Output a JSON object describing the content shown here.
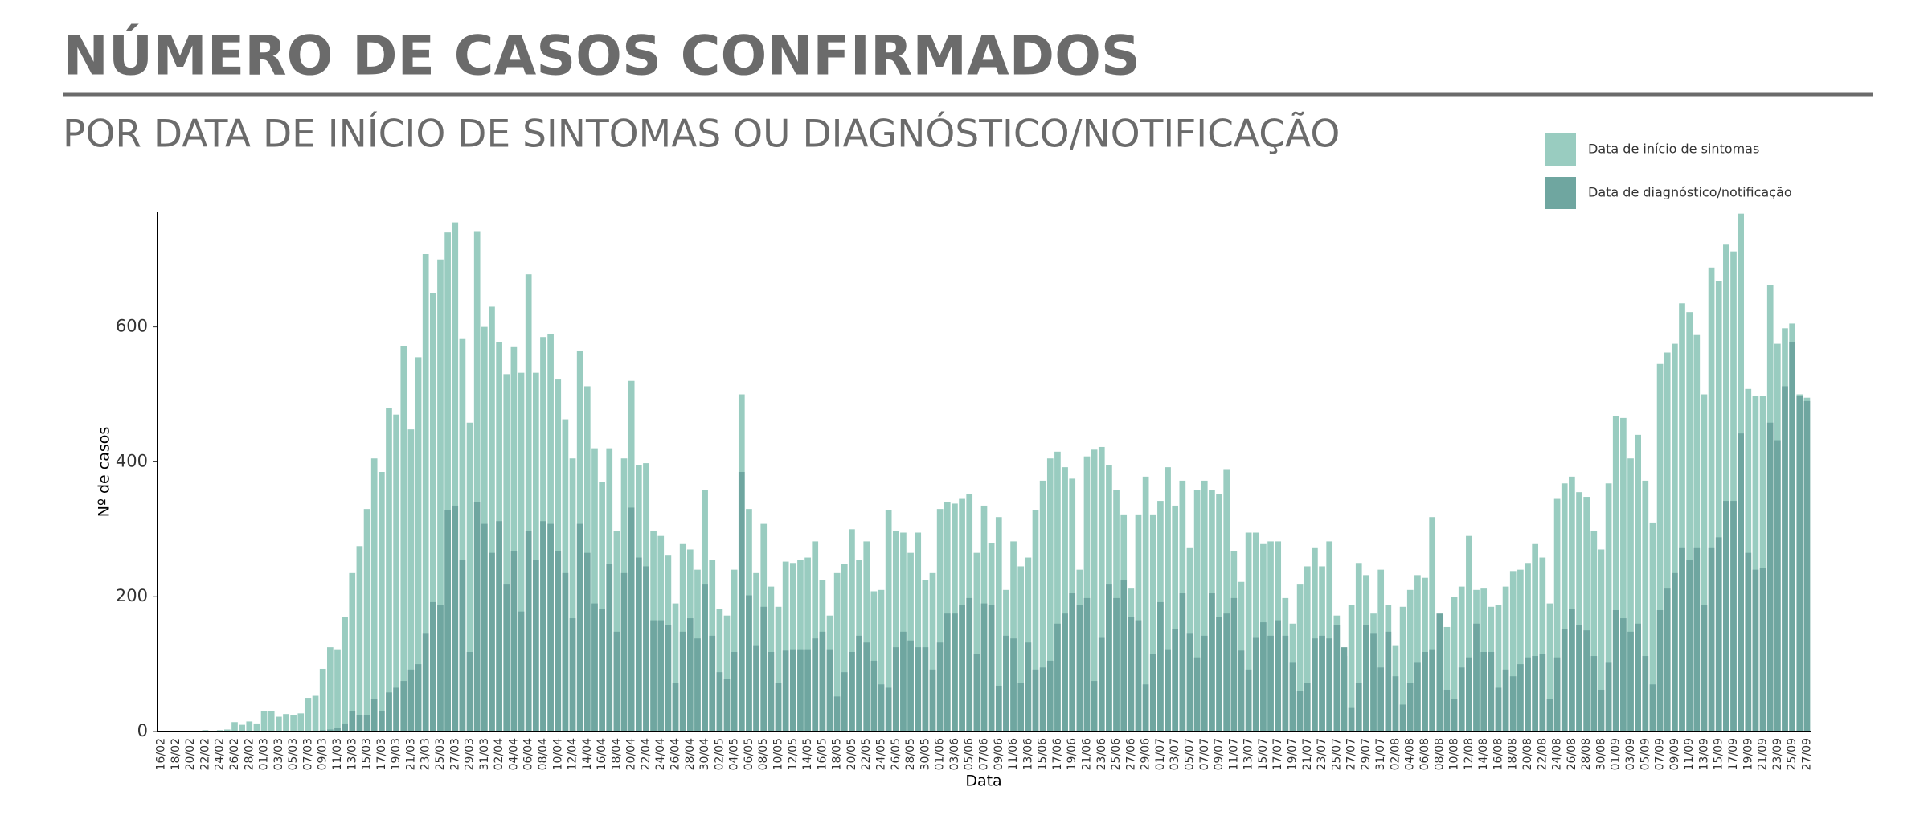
{
  "chart_data": {
    "type": "bar",
    "mode": "overlap",
    "title": "NÚMERO DE CASOS CONFIRMADOS",
    "subtitle": "POR DATA DE INÍCIO DE SINTOMAS OU DIAGNÓSTICO/NOTIFICAÇÃO",
    "x_label": "Data",
    "y_label": "Nº de casos",
    "legend": "top-right",
    "ylim": [
      0,
      770
    ],
    "yticks": [
      0,
      200,
      400,
      600
    ],
    "grid": false,
    "categories": [
      "16/02",
      null,
      "18/02",
      null,
      "20/02",
      null,
      "22/02",
      null,
      "24/02",
      null,
      "26/02",
      null,
      "28/02",
      null,
      "01/03",
      null,
      "03/03",
      null,
      "05/03",
      null,
      "07/03",
      null,
      "09/03",
      null,
      "11/03",
      null,
      "13/03",
      null,
      "15/03",
      null,
      "17/03",
      null,
      "19/03",
      null,
      "21/03",
      null,
      "23/03",
      null,
      "25/03",
      null,
      "27/03",
      null,
      "29/03",
      null,
      "31/03",
      null,
      "02/04",
      null,
      "04/04",
      null,
      "06/04",
      null,
      "08/04",
      null,
      "10/04",
      null,
      "12/04",
      null,
      "14/04",
      null,
      "16/04",
      null,
      "18/04",
      null,
      "20/04",
      null,
      "22/04",
      null,
      "24/04",
      null,
      "26/04",
      null,
      "28/04",
      null,
      "30/04",
      null,
      "02/05",
      null,
      "04/05",
      null,
      "06/05",
      null,
      "08/05",
      null,
      "10/05",
      null,
      "12/05",
      null,
      "14/05",
      null,
      "16/05",
      null,
      "18/05",
      null,
      "20/05",
      null,
      "22/05",
      null,
      "24/05",
      null,
      "26/05",
      null,
      "28/05",
      null,
      "30/05",
      null,
      "01/06",
      null,
      "03/06",
      null,
      "05/06",
      null,
      "07/06",
      null,
      "09/06",
      null,
      "11/06",
      null,
      "13/06",
      null,
      "15/06",
      null,
      "17/06",
      null,
      "19/06",
      null,
      "21/06",
      null,
      "23/06",
      null,
      "25/06",
      null,
      "27/06",
      null,
      "29/06",
      null,
      "01/07",
      null,
      "03/07",
      null,
      "05/07",
      null,
      "07/07",
      null,
      "09/07",
      null,
      "11/07",
      null,
      "13/07",
      null,
      "15/07",
      null,
      "17/07",
      null,
      "19/07",
      null,
      "21/07",
      null,
      "23/07",
      null,
      "25/07",
      null,
      "27/07",
      null,
      "29/07",
      null,
      "31/07",
      null,
      "02/08",
      null,
      "04/08",
      null,
      "06/08",
      null,
      "08/08",
      null,
      "10/08",
      null,
      "12/08",
      null,
      "14/08",
      null,
      "16/08",
      null,
      "18/08",
      null,
      "20/08",
      null,
      "22/08",
      null,
      "24/08",
      null,
      "26/08",
      null,
      "28/08",
      null,
      "30/08",
      null,
      "01/09",
      null,
      "03/09",
      null,
      "05/09",
      null,
      "07/09",
      null,
      "09/09",
      null,
      "11/09",
      null,
      "13/09",
      null,
      "15/09",
      null,
      "17/09",
      null,
      "19/09",
      null,
      "21/09",
      null,
      "23/09",
      null,
      "25/09",
      null,
      "27/09"
    ],
    "series": [
      {
        "name": "Data de início de sintomas",
        "color": "#99ccc0",
        "values": [
          0,
          0,
          0,
          0,
          1,
          1,
          2,
          1,
          2,
          3,
          14,
          10,
          15,
          12,
          30,
          30,
          22,
          26,
          24,
          27,
          50,
          53,
          93,
          125,
          122,
          170,
          235,
          275,
          330,
          405,
          385,
          480,
          470,
          572,
          448,
          555,
          708,
          650,
          700,
          740,
          755,
          582,
          458,
          742,
          600,
          630,
          578,
          530,
          570,
          532,
          678,
          532,
          585,
          590,
          522,
          463,
          405,
          565,
          512,
          420,
          370,
          420,
          298,
          405,
          520,
          395,
          398,
          298,
          290,
          262,
          190,
          278,
          270,
          240,
          358,
          255,
          182,
          172,
          240,
          500,
          330,
          235,
          308,
          215,
          185,
          252,
          250,
          255,
          258,
          282,
          225,
          172,
          235,
          248,
          300,
          255,
          282,
          208,
          210,
          328,
          298,
          295,
          265,
          295,
          225,
          235,
          330,
          340,
          338,
          345,
          352,
          265,
          335,
          280,
          318,
          210,
          282,
          245,
          258,
          328,
          372,
          405,
          415,
          392,
          375,
          240,
          408,
          418,
          422,
          395,
          358,
          322,
          212,
          322,
          378,
          322,
          342,
          392,
          335,
          372,
          272,
          358,
          372,
          358,
          352,
          388,
          268,
          222,
          295,
          295,
          278,
          282,
          282,
          198,
          160,
          218,
          245,
          272,
          245,
          282,
          172,
          112,
          188,
          250,
          232,
          175,
          240,
          188,
          128,
          185,
          210,
          232,
          228,
          318,
          168,
          155,
          200,
          215,
          290,
          210,
          212,
          185,
          188,
          215,
          238,
          240,
          250,
          278,
          258,
          190,
          345,
          368,
          378,
          355,
          348,
          298,
          270,
          368,
          468,
          465,
          405,
          440,
          372,
          310,
          545,
          562,
          575,
          635,
          622,
          588,
          500,
          688,
          668,
          722,
          712,
          768,
          508,
          498,
          498,
          662,
          575,
          598,
          605,
          500,
          495
        ]
      },
      {
        "name": "Data de diagnóstico/notificação",
        "color": "#6fa6a0",
        "values": [
          0,
          0,
          0,
          0,
          0,
          0,
          0,
          0,
          0,
          0,
          0,
          0,
          0,
          0,
          0,
          0,
          0,
          0,
          0,
          0,
          0,
          0,
          2,
          3,
          5,
          12,
          30,
          25,
          25,
          48,
          30,
          58,
          65,
          75,
          92,
          100,
          145,
          192,
          188,
          328,
          335,
          255,
          118,
          340,
          308,
          265,
          312,
          218,
          268,
          178,
          298,
          255,
          312,
          308,
          268,
          235,
          168,
          308,
          265,
          190,
          182,
          248,
          148,
          235,
          332,
          258,
          245,
          165,
          165,
          158,
          72,
          148,
          168,
          138,
          218,
          142,
          88,
          78,
          118,
          385,
          202,
          128,
          185,
          118,
          72,
          120,
          122,
          122,
          122,
          138,
          148,
          122,
          52,
          88,
          118,
          142,
          132,
          105,
          70,
          65,
          125,
          148,
          135,
          125,
          125,
          92,
          132,
          175,
          175,
          188,
          198,
          115,
          190,
          188,
          68,
          142,
          138,
          72,
          132,
          92,
          95,
          105,
          160,
          175,
          205,
          188,
          198,
          75,
          140,
          218,
          198,
          225,
          170,
          165,
          70,
          115,
          192,
          122,
          152,
          205,
          145,
          110,
          142,
          205,
          170,
          175,
          198,
          120,
          92,
          140,
          162,
          142,
          165,
          142,
          102,
          60,
          72,
          138,
          142,
          138,
          158,
          125,
          35,
          72,
          158,
          145,
          95,
          148,
          82,
          40,
          72,
          102,
          118,
          122,
          175,
          62,
          48,
          95,
          110,
          160,
          118,
          118,
          65,
          92,
          82,
          100,
          110,
          112,
          115,
          48,
          110,
          152,
          182,
          158,
          150,
          112,
          62,
          102,
          180,
          168,
          148,
          160,
          112,
          70,
          180,
          212,
          235,
          272,
          255,
          272,
          188,
          272,
          288,
          342,
          342,
          442,
          265,
          240,
          242,
          458,
          432,
          512,
          578,
          498,
          490
        ]
      }
    ]
  }
}
